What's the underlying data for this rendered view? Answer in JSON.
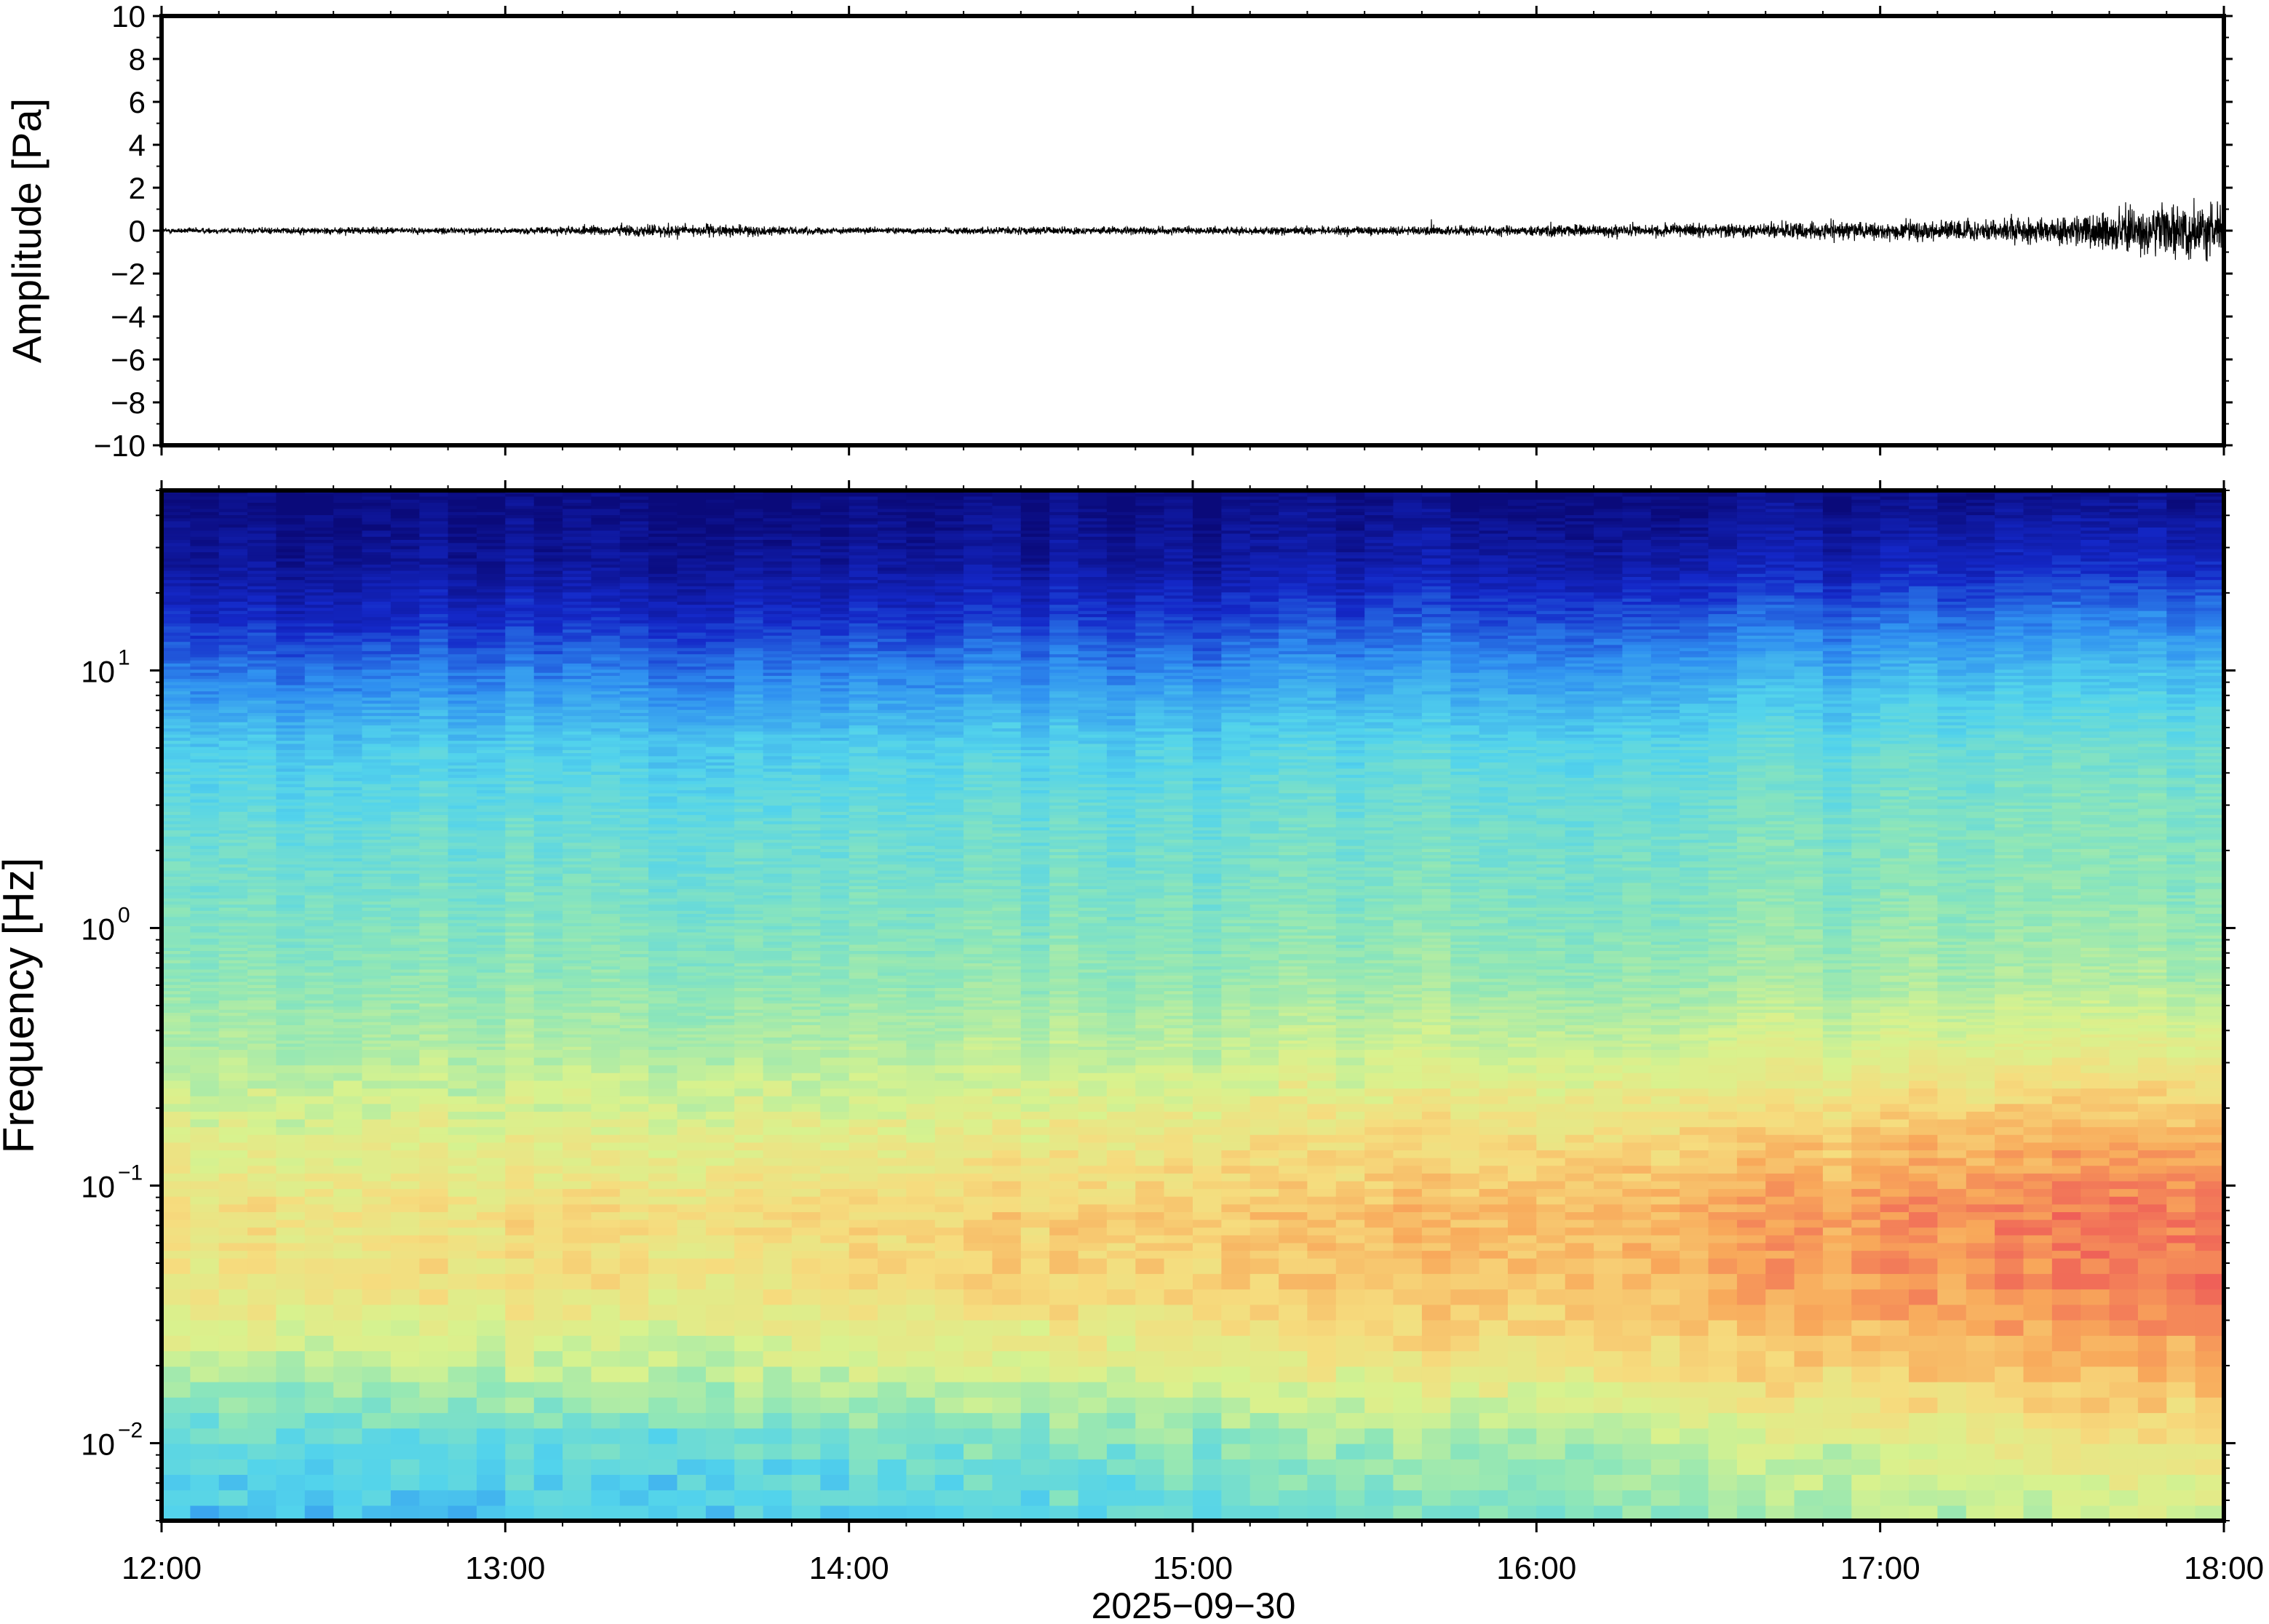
{
  "chart_data": [
    {
      "type": "line",
      "ylabel": "Amplitude [Pa]",
      "xlabel": "",
      "ylim": [
        -10,
        10
      ],
      "yticks": [
        10,
        8,
        6,
        4,
        2,
        0,
        -2,
        -4,
        -6,
        -8,
        -10
      ],
      "ytick_labels": [
        "10",
        "8",
        "6",
        "4",
        "2",
        "0",
        "−2",
        "−4",
        "−6",
        "−8",
        "−10"
      ],
      "x_hours": [
        12,
        18
      ],
      "grid": false,
      "series": [
        {
          "x_hours": [
            12.0,
            12.5,
            13.0,
            13.5,
            14.0,
            14.5,
            15.0,
            15.5,
            16.0,
            16.5,
            17.0,
            17.5,
            17.75,
            18.0
          ],
          "amplitude_envelope": [
            0.15,
            0.18,
            0.15,
            0.35,
            0.15,
            0.2,
            0.2,
            0.22,
            0.3,
            0.35,
            0.5,
            0.7,
            1.2,
            1.4
          ],
          "color": "#000000"
        }
      ]
    },
    {
      "type": "heatmap",
      "ylabel": "Frequency [Hz]",
      "xlabel": "2025−09−30",
      "yscale": "log",
      "ylim": [
        0.005,
        50
      ],
      "yticks": [
        0.01,
        0.1,
        1,
        10
      ],
      "ytick_labels": [
        {
          "base": "10",
          "exp": "−2"
        },
        {
          "base": "10",
          "exp": "−1"
        },
        {
          "base": "10",
          "exp": "0"
        },
        {
          "base": "10",
          "exp": "1"
        }
      ],
      "xticks_hours": [
        12,
        13,
        14,
        15,
        16,
        17,
        18
      ],
      "xtick_labels": [
        "12:00",
        "13:00",
        "14:00",
        "15:00",
        "16:00",
        "17:00",
        "18:00"
      ],
      "colormap": "jet",
      "colors": [
        "#0a0a7a",
        "#1428c8",
        "#2f8ff0",
        "#52d3ec",
        "#8ee6b8",
        "#d8f28e",
        "#f6dc7e",
        "#f8a85a",
        "#ef5f58"
      ],
      "profile_log_freq": [
        -2.3,
        -2.0,
        -1.7,
        -1.4,
        -1.1,
        -0.8,
        -0.5,
        -0.2,
        0.1,
        0.4,
        0.7,
        1.0,
        1.2,
        1.4,
        1.7
      ],
      "profile_start_12h": [
        0.34,
        0.4,
        0.58,
        0.7,
        0.72,
        0.64,
        0.56,
        0.5,
        0.46,
        0.42,
        0.36,
        0.22,
        0.12,
        0.05,
        0.0
      ],
      "profile_end_18h": [
        0.62,
        0.72,
        0.86,
        0.95,
        0.97,
        0.86,
        0.68,
        0.55,
        0.5,
        0.48,
        0.44,
        0.34,
        0.24,
        0.12,
        0.02
      ]
    }
  ]
}
